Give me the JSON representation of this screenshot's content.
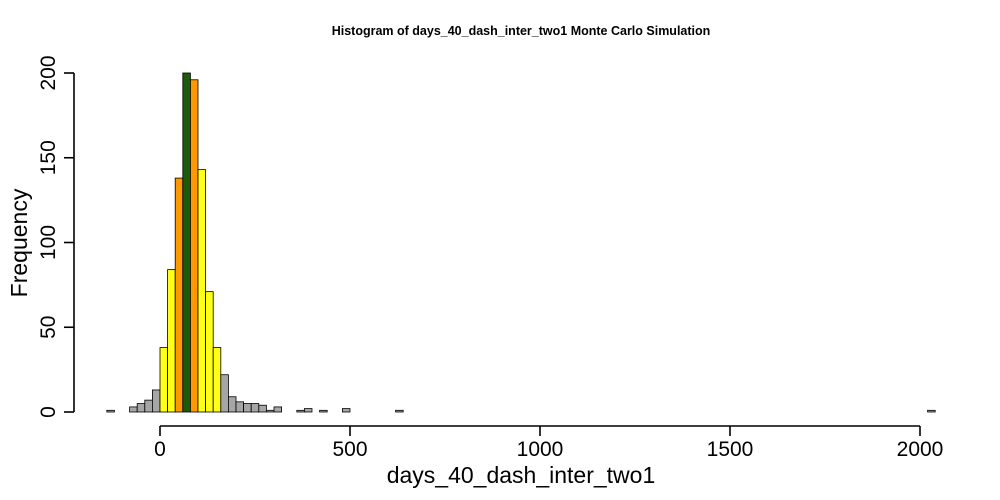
{
  "chart_data": {
    "type": "bar",
    "title": "Histogram of  days_40_dash_inter_two1  Monte Carlo Simulation",
    "xlabel": "days_40_dash_inter_two1",
    "ylabel": "Frequency",
    "xlim": [
      -140,
      2040
    ],
    "ylim": [
      0,
      200
    ],
    "x_ticks": [
      0,
      500,
      1000,
      1500,
      2000
    ],
    "y_ticks": [
      0,
      50,
      100,
      150,
      200
    ],
    "bin_width": 20,
    "grid": false,
    "legend": "none",
    "colors": {
      "gray": "#a6a6a6",
      "yellow": "#ffff1a",
      "orange": "#ff9900",
      "green": "#1a5c0a"
    },
    "bins": [
      {
        "x0": -140,
        "x1": -120,
        "count": 1,
        "color": "gray"
      },
      {
        "x0": -120,
        "x1": -100,
        "count": 0,
        "color": "gray"
      },
      {
        "x0": -100,
        "x1": -80,
        "count": 0,
        "color": "gray"
      },
      {
        "x0": -80,
        "x1": -60,
        "count": 3,
        "color": "gray"
      },
      {
        "x0": -60,
        "x1": -40,
        "count": 5,
        "color": "gray"
      },
      {
        "x0": -40,
        "x1": -20,
        "count": 7,
        "color": "gray"
      },
      {
        "x0": -20,
        "x1": 0,
        "count": 13,
        "color": "gray"
      },
      {
        "x0": 0,
        "x1": 20,
        "count": 38,
        "color": "yellow"
      },
      {
        "x0": 20,
        "x1": 40,
        "count": 84,
        "color": "yellow"
      },
      {
        "x0": 40,
        "x1": 60,
        "count": 138,
        "color": "orange"
      },
      {
        "x0": 60,
        "x1": 80,
        "count": 200,
        "color": "green"
      },
      {
        "x0": 80,
        "x1": 100,
        "count": 196,
        "color": "orange"
      },
      {
        "x0": 100,
        "x1": 120,
        "count": 143,
        "color": "yellow"
      },
      {
        "x0": 120,
        "x1": 140,
        "count": 71,
        "color": "yellow"
      },
      {
        "x0": 140,
        "x1": 160,
        "count": 38,
        "color": "yellow"
      },
      {
        "x0": 160,
        "x1": 180,
        "count": 22,
        "color": "gray"
      },
      {
        "x0": 180,
        "x1": 200,
        "count": 9,
        "color": "gray"
      },
      {
        "x0": 200,
        "x1": 220,
        "count": 6,
        "color": "gray"
      },
      {
        "x0": 220,
        "x1": 240,
        "count": 5,
        "color": "gray"
      },
      {
        "x0": 240,
        "x1": 260,
        "count": 5,
        "color": "gray"
      },
      {
        "x0": 260,
        "x1": 280,
        "count": 4,
        "color": "gray"
      },
      {
        "x0": 280,
        "x1": 300,
        "count": 1,
        "color": "gray"
      },
      {
        "x0": 300,
        "x1": 320,
        "count": 3,
        "color": "gray"
      },
      {
        "x0": 320,
        "x1": 340,
        "count": 0,
        "color": "gray"
      },
      {
        "x0": 340,
        "x1": 360,
        "count": 0,
        "color": "gray"
      },
      {
        "x0": 360,
        "x1": 380,
        "count": 1,
        "color": "gray"
      },
      {
        "x0": 380,
        "x1": 400,
        "count": 2,
        "color": "gray"
      },
      {
        "x0": 400,
        "x1": 420,
        "count": 0,
        "color": "gray"
      },
      {
        "x0": 420,
        "x1": 440,
        "count": 1,
        "color": "gray"
      },
      {
        "x0": 440,
        "x1": 460,
        "count": 0,
        "color": "gray"
      },
      {
        "x0": 460,
        "x1": 480,
        "count": 0,
        "color": "gray"
      },
      {
        "x0": 480,
        "x1": 500,
        "count": 2,
        "color": "gray"
      },
      {
        "x0": 620,
        "x1": 640,
        "count": 1,
        "color": "gray"
      },
      {
        "x0": 2020,
        "x1": 2040,
        "count": 1,
        "color": "gray"
      }
    ]
  }
}
